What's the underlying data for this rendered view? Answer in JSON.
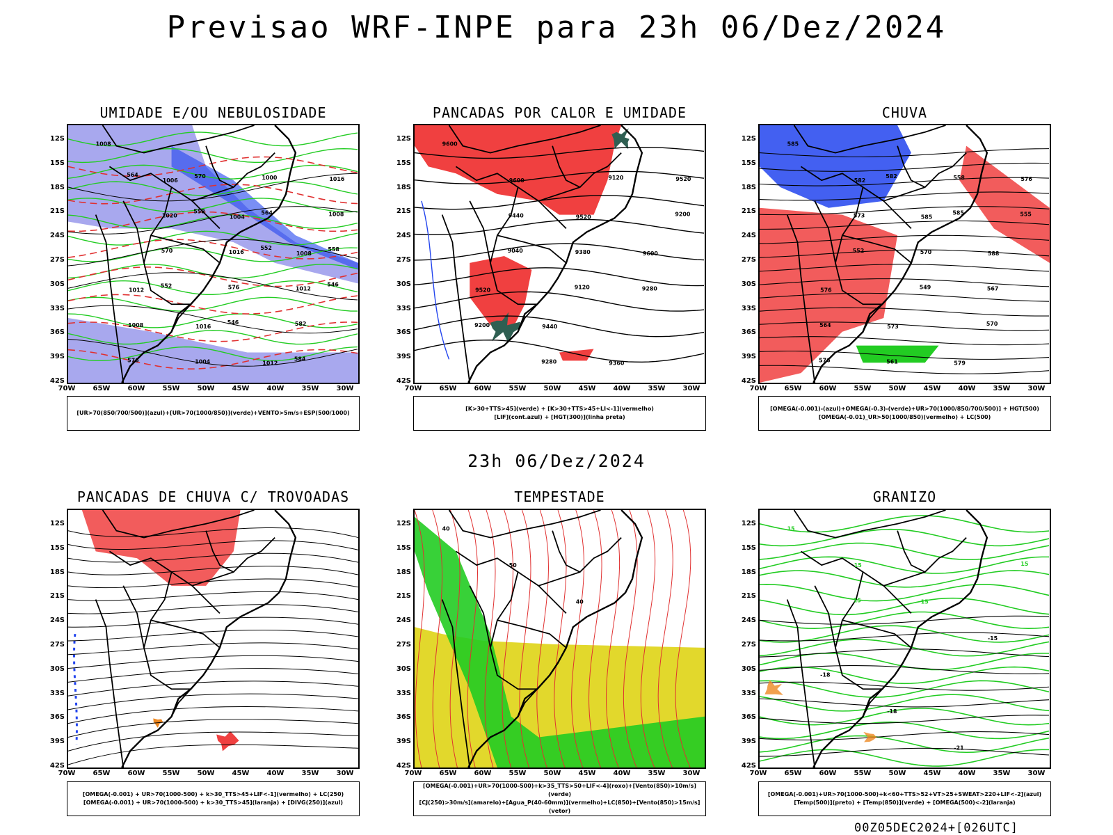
{
  "main_title": "Previsao WRF-INPE  para 23h 06/Dez/2024",
  "mid_title": "23h 06/Dez/2024",
  "footer": "00Z05DEC2024+[026UTC]",
  "lat_ticks": [
    "12S",
    "15S",
    "18S",
    "21S",
    "24S",
    "27S",
    "30S",
    "33S",
    "36S",
    "39S",
    "42S"
  ],
  "lon_ticks": [
    "70W",
    "65W",
    "60W",
    "55W",
    "50W",
    "45W",
    "40W",
    "35W",
    "30W"
  ],
  "colors": {
    "red": "#f04040",
    "blue": "#2244ee",
    "green": "#22cc22",
    "lavender": "#a8a8ee",
    "yellow": "#e2d82c",
    "orange": "#ee8822",
    "darkgreen": "#2f5f52",
    "contour_red": "#e03030"
  },
  "panels": [
    {
      "title": "UMIDADE E/OU NEBULOSIDADE",
      "legend": [
        "[UR>70(850/700/500)](azul)+[UR>70(1000/850)](verde)+VENTO>5m/s+ESP(500/1000)"
      ],
      "labels": [
        "1008",
        "1006",
        "1004",
        "1008",
        "1012",
        "1016",
        "1012",
        "1016",
        "1020",
        "1016",
        "1012",
        "1008",
        "1004",
        "1000",
        "1008",
        "570",
        "576",
        "582",
        "576",
        "570",
        "564",
        "558",
        "552",
        "546",
        "584",
        "564",
        "558",
        "552",
        "546"
      ]
    },
    {
      "title": "PANCADAS POR CALOR E UMIDADE",
      "legend": [
        "[K>30+TTS>45](verde) + [K>30+TTS>45+LI<-1](vermelho)",
        "[LIF](cont.azul) + [HGT(300)](linha preta)"
      ],
      "labels": [
        "9600",
        "9600",
        "9520",
        "9600",
        "9520",
        "9440",
        "9360",
        "9520",
        "9440",
        "9380",
        "9280",
        "9200",
        "9280",
        "9120",
        "9200",
        "9040",
        "9120"
      ]
    },
    {
      "title": "CHUVA",
      "legend": [
        "[OMEGA(-0.001)-(azul)+OMEGA(-0.3)-(verde)+UR>70(1000/850/700/500)] + HGT(500)",
        "[OMEGA(-0.01)_UR>50(1000/850)(vermelho) + LC(500)"
      ],
      "labels": [
        "585",
        "582",
        "585",
        "588",
        "576",
        "573",
        "579",
        "576",
        "573",
        "570",
        "567",
        "564",
        "561",
        "558",
        "555",
        "552",
        "549",
        "570",
        "576",
        "582",
        "585"
      ]
    },
    {
      "title": "PANCADAS DE CHUVA C/ TROVOADAS",
      "legend": [
        "[OMEGA(-0.001) + UR>70(1000-500) + k>30_TTS>45+LIF<-1](vermelho) + LC(250)",
        "[OMEGA(-0.001) + UR>70(1000-500) + k>30_TTS>45](laranja) + [DIVG(250)](azul)"
      ],
      "labels": []
    },
    {
      "title": "TEMPESTADE",
      "legend": [
        "[OMEGA(-0.001)+UR>70(1000-500)+k>35_TTS>50+LIF<-4](roxo)+[Vento(850)>10m/s](verde)",
        "[CJ(250)>30m/s](amarelo)+[Agua_P(40-60mm)](vermelho)+LC(850)+[Vento(850)>15m/s](vetor)"
      ],
      "labels": [
        "40",
        "50",
        "40"
      ]
    },
    {
      "title": "GRANIZO",
      "legend": [
        "[OMEGA(-0.001)+UR>70(1000-500)+k<60+TTS>52+VT>25+SWEAT>220+LIF<-2](azul)",
        "[Temp(500)](preto) + [Temp(850)](verde) + [OMEGA(500)<-2](laranja)"
      ],
      "labels": [
        "15",
        "15",
        "15",
        "-15",
        "-18",
        "-18",
        "-21",
        "15",
        "15"
      ]
    }
  ]
}
